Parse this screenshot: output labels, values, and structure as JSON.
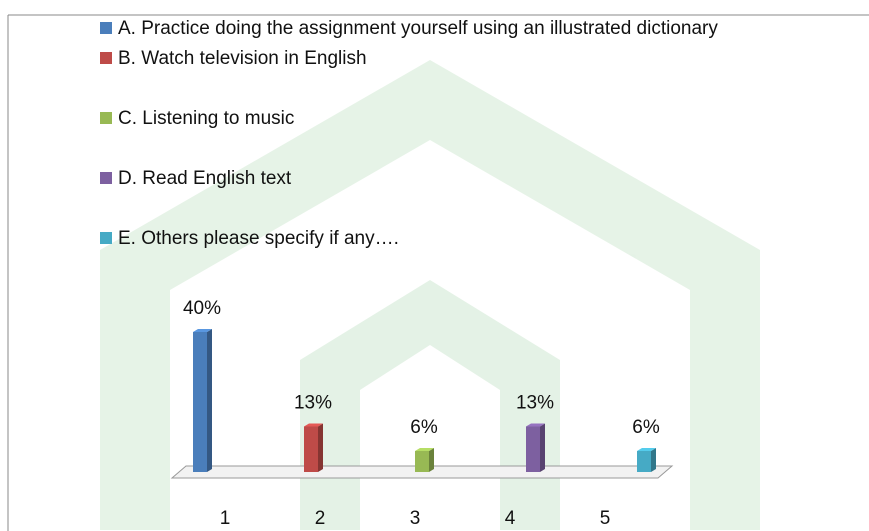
{
  "chart_data": {
    "type": "bar",
    "categories": [
      "1",
      "2",
      "3",
      "4",
      "5"
    ],
    "values": [
      40,
      13,
      6,
      13,
      6
    ],
    "value_labels": [
      "40%",
      "13%",
      "6%",
      "13%",
      "6%"
    ],
    "colors": [
      "#4a7ebb",
      "#be4b48",
      "#98b954",
      "#7d60a0",
      "#46aac5"
    ],
    "legend": [
      "A. Practice doing the assignment yourself using an illustrated dictionary",
      "B. Watch television in English",
      "C. Listening to music",
      "D. Read English text",
      "E. Others please specify if any…."
    ]
  }
}
